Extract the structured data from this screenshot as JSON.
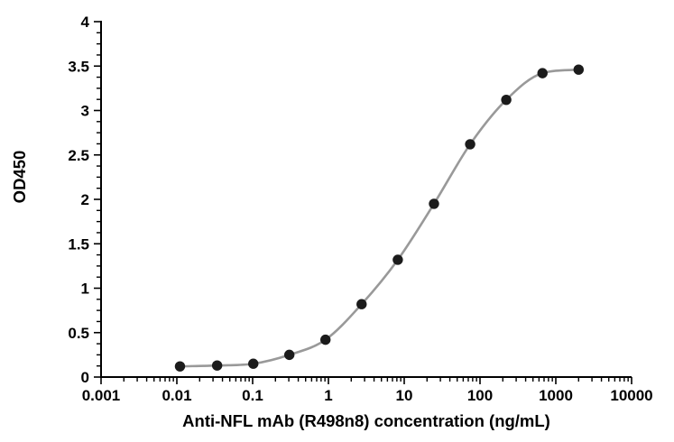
{
  "figure": {
    "background": "#ffffff"
  },
  "chart_data": {
    "type": "scatter",
    "subtype": "dose-response-curve-with-fitted-line",
    "title": "",
    "xlabel": "Anti-NFL mAb (R498n8) concentration (ng/mL)",
    "ylabel": "OD450",
    "x_scale": "log10",
    "xlim": [
      0.001,
      10000
    ],
    "ylim": [
      0,
      4
    ],
    "grid": false,
    "legend": "none",
    "x_tick_values": [
      0.001,
      0.01,
      0.1,
      1,
      10,
      100,
      1000,
      10000
    ],
    "x_tick_labels": [
      "0.001",
      "0.01",
      "0.1",
      "1",
      "10",
      "100",
      "1000",
      "10000"
    ],
    "y_tick_values": [
      0,
      0.5,
      1,
      1.5,
      2,
      2.5,
      3,
      3.5,
      4
    ],
    "y_tick_labels": [
      "0",
      "0.5",
      "1",
      "1.5",
      "2",
      "2.5",
      "3",
      "3.5",
      "4"
    ],
    "points": [
      {
        "x": 0.011,
        "y": 0.12
      },
      {
        "x": 0.034,
        "y": 0.13
      },
      {
        "x": 0.102,
        "y": 0.15
      },
      {
        "x": 0.305,
        "y": 0.25
      },
      {
        "x": 0.914,
        "y": 0.42
      },
      {
        "x": 2.74,
        "y": 0.82
      },
      {
        "x": 8.23,
        "y": 1.32
      },
      {
        "x": 24.7,
        "y": 1.95
      },
      {
        "x": 74.1,
        "y": 2.62
      },
      {
        "x": 222,
        "y": 3.12
      },
      {
        "x": 667,
        "y": 3.42
      },
      {
        "x": 2000,
        "y": 3.46
      }
    ],
    "colors": {
      "marker": "#1b1b1b",
      "curve": "#999999",
      "axis": "#000000",
      "background": "#ffffff"
    }
  }
}
